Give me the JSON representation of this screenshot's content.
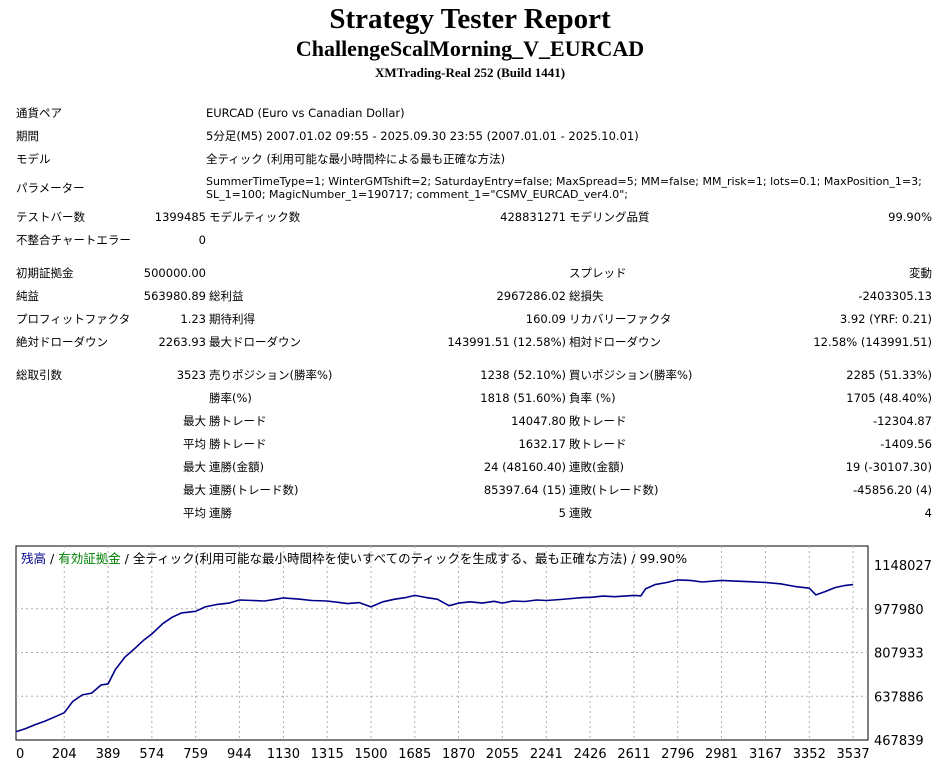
{
  "header": {
    "title": "Strategy Tester Report",
    "subtitle": "ChallengeScalMorning_V_EURCAD",
    "build": "XMTrading-Real 252 (Build 1441)"
  },
  "info": {
    "symbol_label": "通貨ペア",
    "symbol_value": "EURCAD (Euro vs Canadian Dollar)",
    "period_label": "期間",
    "period_value": "5分足(M5) 2007.01.02 09:55 - 2025.09.30 23:55 (2007.01.01 - 2025.10.01)",
    "model_label": "モデル",
    "model_value": "全ティック (利用可能な最小時間枠による最も正確な方法)",
    "params_label": "パラメーター",
    "params_value": "SummerTimeType=1; WinterGMTshift=2; SaturdayEntry=false; MaxSpread=5; MM=false; MM_risk=1; lots=0.1; MaxPosition_1=3; SL_1=100; MagicNumber_1=190717; comment_1=\"CSMV_EURCAD_ver4.0\";"
  },
  "stats": {
    "bars_label": "テストバー数",
    "bars_value": "1399485",
    "ticks_label": "モデルティック数",
    "ticks_value": "428831271",
    "quality_label": "モデリング品質",
    "quality_value": "99.90%",
    "mismatch_label": "不整合チャートエラー",
    "mismatch_value": "0",
    "deposit_label": "初期証拠金",
    "deposit_value": "500000.00",
    "spread_label": "スプレッド",
    "spread_value": "変動",
    "net_label": "純益",
    "net_value": "563980.89",
    "gross_profit_label": "総利益",
    "gross_profit_value": "2967286.02",
    "gross_loss_label": "総損失",
    "gross_loss_value": "-2403305.13",
    "pf_label": "プロフィットファクタ",
    "pf_value": "1.23",
    "expected_label": "期待利得",
    "expected_value": "160.09",
    "recovery_label": "リカバリーファクタ",
    "recovery_value": "3.92 (YRF: 0.21)",
    "abs_dd_label": "絶対ドローダウン",
    "abs_dd_value": "2263.93",
    "max_dd_label": "最大ドローダウン",
    "max_dd_value": "143991.51 (12.58%)",
    "rel_dd_label": "相対ドローダウン",
    "rel_dd_value": "12.58% (143991.51)",
    "trades_label": "総取引数",
    "trades_value": "3523",
    "short_label": "売りポジション(勝率%)",
    "short_value": "1238 (52.10%)",
    "long_label": "買いポジション(勝率%)",
    "long_value": "2285 (51.33%)",
    "winrate_label": "勝率(%)",
    "winrate_value": "1818 (51.60%)",
    "lossrate_label": "負率 (%)",
    "lossrate_value": "1705 (48.40%)",
    "max_prefix": "最大",
    "avg_prefix": "平均",
    "win_trade_label": "勝トレード",
    "loss_trade_label": "敗トレード",
    "largest_win_value": "14047.80",
    "largest_loss_value": "-12304.87",
    "avg_win_value": "1632.17",
    "avg_loss_value": "-1409.56",
    "cons_wins_amount_label": "連勝(金額)",
    "cons_wins_amount_value": "24 (48160.40)",
    "cons_losses_amount_label": "連敗(金額)",
    "cons_losses_amount_value": "19 (-30107.30)",
    "cons_wins_trades_label": "連勝(トレード数)",
    "cons_wins_trades_value": "85397.64 (15)",
    "cons_losses_trades_label": "連敗(トレード数)",
    "cons_losses_trades_value": "-45856.20 (4)",
    "avg_cons_wins_label": "連勝",
    "avg_cons_wins_value": "5",
    "avg_cons_losses_label": "連敗",
    "avg_cons_losses_value": "4"
  },
  "chart_data": {
    "type": "line",
    "legend": {
      "balance": "残高",
      "separator1": " / ",
      "equity": "有効証拠金",
      "separator2": " / ",
      "model": "全ティック(利用可能な最小時間枠を使いすべてのティックを生成する、最も正確な方法)",
      "separator3": " / ",
      "quality": "99.90%"
    },
    "colors": {
      "balance": "#00008b",
      "equity": "#008000",
      "grid": "#b0b0b0"
    },
    "ylim": [
      467839,
      1148027
    ],
    "y_ticks": [
      "1148027",
      "977980",
      "807933",
      "637886",
      "467839"
    ],
    "xlim": [
      0,
      3600
    ],
    "x_ticks": [
      "0",
      "204",
      "389",
      "574",
      "759",
      "944",
      "1130",
      "1315",
      "1500",
      "1685",
      "1870",
      "2055",
      "2241",
      "2426",
      "2611",
      "2796",
      "2981",
      "3167",
      "3352",
      "3537"
    ],
    "series": [
      {
        "x": [
          0,
          40,
          80,
          120,
          160,
          204,
          240,
          280,
          320,
          360,
          389,
          420,
          460,
          500,
          540,
          574,
          620,
          660,
          700,
          759,
          800,
          850,
          900,
          944,
          1000,
          1050,
          1100,
          1130,
          1200,
          1250,
          1315,
          1360,
          1400,
          1450,
          1500,
          1550,
          1600,
          1650,
          1685,
          1730,
          1780,
          1830,
          1870,
          1920,
          1970,
          2020,
          2055,
          2100,
          2150,
          2200,
          2241,
          2300,
          2350,
          2400,
          2426,
          2480,
          2530,
          2580,
          2611,
          2640,
          2660,
          2700,
          2750,
          2796,
          2850,
          2900,
          2981,
          3050,
          3100,
          3167,
          3230,
          3290,
          3352,
          3380,
          3420,
          3460,
          3500,
          3537
        ],
        "values": [
          500000,
          512000,
          527000,
          540000,
          556000,
          574000,
          618000,
          643000,
          650000,
          682000,
          686000,
          742000,
          790000,
          822000,
          856000,
          880000,
          920000,
          945000,
          962000,
          968000,
          985000,
          995000,
          1000000,
          1012000,
          1010000,
          1008000,
          1015000,
          1020000,
          1015000,
          1010000,
          1008000,
          1003000,
          998000,
          1002000,
          985000,
          1005000,
          1015000,
          1022000,
          1030000,
          1022000,
          1015000,
          990000,
          1000000,
          1005000,
          1000000,
          1007000,
          1000000,
          1008000,
          1006000,
          1012000,
          1010000,
          1014000,
          1018000,
          1022000,
          1022000,
          1027000,
          1025000,
          1028000,
          1030000,
          1028000,
          1055000,
          1072000,
          1080000,
          1090000,
          1088000,
          1082000,
          1088000,
          1085000,
          1083000,
          1080000,
          1075000,
          1065000,
          1058000,
          1032000,
          1045000,
          1060000,
          1068000,
          1072000
        ]
      }
    ]
  }
}
